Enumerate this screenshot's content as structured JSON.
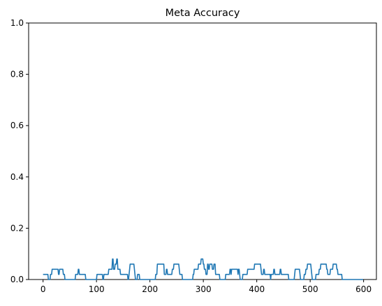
{
  "chart_data": {
    "type": "line",
    "title": "Meta Accuracy",
    "xlabel": "",
    "ylabel": "",
    "xlim": [
      -27,
      624
    ],
    "ylim": [
      0,
      1
    ],
    "x_ticks": [
      0,
      100,
      200,
      300,
      400,
      500,
      600
    ],
    "y_ticks": [
      0.0,
      0.2,
      0.4,
      0.6,
      0.8,
      1.0
    ],
    "x_tick_labels": [
      "0",
      "100",
      "200",
      "300",
      "400",
      "500",
      "600"
    ],
    "y_tick_labels": [
      "0.0",
      "0.2",
      "0.4",
      "0.6",
      "0.8",
      "1.0"
    ],
    "grid": false,
    "legend": "none",
    "series": [
      {
        "color": "#1f77b4",
        "points": [
          [
            0,
            0.02
          ],
          [
            9,
            0.02
          ],
          [
            10,
            0
          ],
          [
            13,
            0
          ],
          [
            14,
            0.02
          ],
          [
            16,
            0.02
          ],
          [
            17,
            0.04
          ],
          [
            28,
            0.04
          ],
          [
            29,
            0.02
          ],
          [
            30,
            0.02
          ],
          [
            31,
            0.04
          ],
          [
            37,
            0.04
          ],
          [
            38,
            0.02
          ],
          [
            40,
            0.02
          ],
          [
            41,
            0
          ],
          [
            60,
            0
          ],
          [
            61,
            0.02
          ],
          [
            65,
            0.02
          ],
          [
            66,
            0.04
          ],
          [
            67,
            0.04
          ],
          [
            68,
            0.02
          ],
          [
            79,
            0.02
          ],
          [
            80,
            0
          ],
          [
            100,
            0
          ],
          [
            101,
            0.02
          ],
          [
            111,
            0.02
          ],
          [
            112,
            0
          ],
          [
            113,
            0
          ],
          [
            114,
            0.02
          ],
          [
            122,
            0.02
          ],
          [
            123,
            0.04
          ],
          [
            129,
            0.04
          ],
          [
            130,
            0.08
          ],
          [
            131,
            0.08
          ],
          [
            132,
            0.04
          ],
          [
            134,
            0.04
          ],
          [
            135,
            0.06
          ],
          [
            137,
            0.06
          ],
          [
            138,
            0.08
          ],
          [
            139,
            0.08
          ],
          [
            140,
            0.04
          ],
          [
            144,
            0.04
          ],
          [
            145,
            0.02
          ],
          [
            158,
            0.02
          ],
          [
            159,
            0
          ],
          [
            160,
            0
          ],
          [
            161,
            0.02
          ],
          [
            162,
            0.04
          ],
          [
            163,
            0.06
          ],
          [
            170,
            0.06
          ],
          [
            171,
            0.04
          ],
          [
            172,
            0.02
          ],
          [
            173,
            0
          ],
          [
            176,
            0
          ],
          [
            177,
            0.02
          ],
          [
            180,
            0.02
          ],
          [
            181,
            0
          ],
          [
            210,
            0
          ],
          [
            211,
            0.02
          ],
          [
            213,
            0.02
          ],
          [
            214,
            0.06
          ],
          [
            226,
            0.06
          ],
          [
            227,
            0.02
          ],
          [
            230,
            0.02
          ],
          [
            231,
            0.04
          ],
          [
            232,
            0.04
          ],
          [
            233,
            0.02
          ],
          [
            241,
            0.02
          ],
          [
            242,
            0.04
          ],
          [
            244,
            0.04
          ],
          [
            245,
            0.06
          ],
          [
            254,
            0.06
          ],
          [
            255,
            0.04
          ],
          [
            256,
            0.02
          ],
          [
            260,
            0.02
          ],
          [
            261,
            0
          ],
          [
            280,
            0
          ],
          [
            281,
            0.02
          ],
          [
            282,
            0.02
          ],
          [
            283,
            0.04
          ],
          [
            290,
            0.04
          ],
          [
            291,
            0.06
          ],
          [
            295,
            0.06
          ],
          [
            296,
            0.08
          ],
          [
            299,
            0.08
          ],
          [
            300,
            0.06
          ],
          [
            301,
            0.06
          ],
          [
            302,
            0.04
          ],
          [
            304,
            0.04
          ],
          [
            305,
            0.02
          ],
          [
            307,
            0.02
          ],
          [
            308,
            0.06
          ],
          [
            309,
            0.06
          ],
          [
            310,
            0.04
          ],
          [
            311,
            0.04
          ],
          [
            312,
            0.06
          ],
          [
            316,
            0.06
          ],
          [
            317,
            0.04
          ],
          [
            319,
            0.04
          ],
          [
            320,
            0.06
          ],
          [
            322,
            0.06
          ],
          [
            323,
            0.02
          ],
          [
            330,
            0.02
          ],
          [
            331,
            0
          ],
          [
            341,
            0
          ],
          [
            342,
            0.02
          ],
          [
            349,
            0.02
          ],
          [
            350,
            0.04
          ],
          [
            351,
            0.04
          ],
          [
            352,
            0.02
          ],
          [
            353,
            0.04
          ],
          [
            364,
            0.04
          ],
          [
            365,
            0.02
          ],
          [
            366,
            0.04
          ],
          [
            367,
            0.04
          ],
          [
            368,
            0.02
          ],
          [
            369,
            0
          ],
          [
            373,
            0
          ],
          [
            374,
            0.02
          ],
          [
            382,
            0.02
          ],
          [
            383,
            0.04
          ],
          [
            395,
            0.04
          ],
          [
            396,
            0.06
          ],
          [
            407,
            0.06
          ],
          [
            408,
            0.04
          ],
          [
            409,
            0.02
          ],
          [
            412,
            0.02
          ],
          [
            413,
            0.04
          ],
          [
            414,
            0.04
          ],
          [
            415,
            0.02
          ],
          [
            425,
            0.02
          ],
          [
            426,
            0
          ],
          [
            427,
            0.02
          ],
          [
            431,
            0.02
          ],
          [
            432,
            0.04
          ],
          [
            433,
            0.04
          ],
          [
            434,
            0.02
          ],
          [
            443,
            0.02
          ],
          [
            444,
            0.04
          ],
          [
            445,
            0.04
          ],
          [
            446,
            0.02
          ],
          [
            459,
            0.02
          ],
          [
            460,
            0
          ],
          [
            470,
            0
          ],
          [
            471,
            0.02
          ],
          [
            472,
            0.04
          ],
          [
            480,
            0.04
          ],
          [
            481,
            0.02
          ],
          [
            482,
            0
          ],
          [
            488,
            0
          ],
          [
            489,
            0.02
          ],
          [
            491,
            0.02
          ],
          [
            492,
            0.04
          ],
          [
            494,
            0.04
          ],
          [
            495,
            0.06
          ],
          [
            501,
            0.06
          ],
          [
            502,
            0.04
          ],
          [
            503,
            0.02
          ],
          [
            504,
            0
          ],
          [
            510,
            0
          ],
          [
            511,
            0.02
          ],
          [
            516,
            0.02
          ],
          [
            517,
            0.04
          ],
          [
            519,
            0.04
          ],
          [
            520,
            0.06
          ],
          [
            530,
            0.06
          ],
          [
            531,
            0.04
          ],
          [
            532,
            0.04
          ],
          [
            533,
            0.02
          ],
          [
            537,
            0.02
          ],
          [
            538,
            0.04
          ],
          [
            542,
            0.04
          ],
          [
            543,
            0.06
          ],
          [
            549,
            0.06
          ],
          [
            550,
            0.04
          ],
          [
            551,
            0.04
          ],
          [
            552,
            0.02
          ],
          [
            559,
            0.02
          ],
          [
            560,
            0
          ],
          [
            599,
            0
          ]
        ]
      }
    ]
  }
}
